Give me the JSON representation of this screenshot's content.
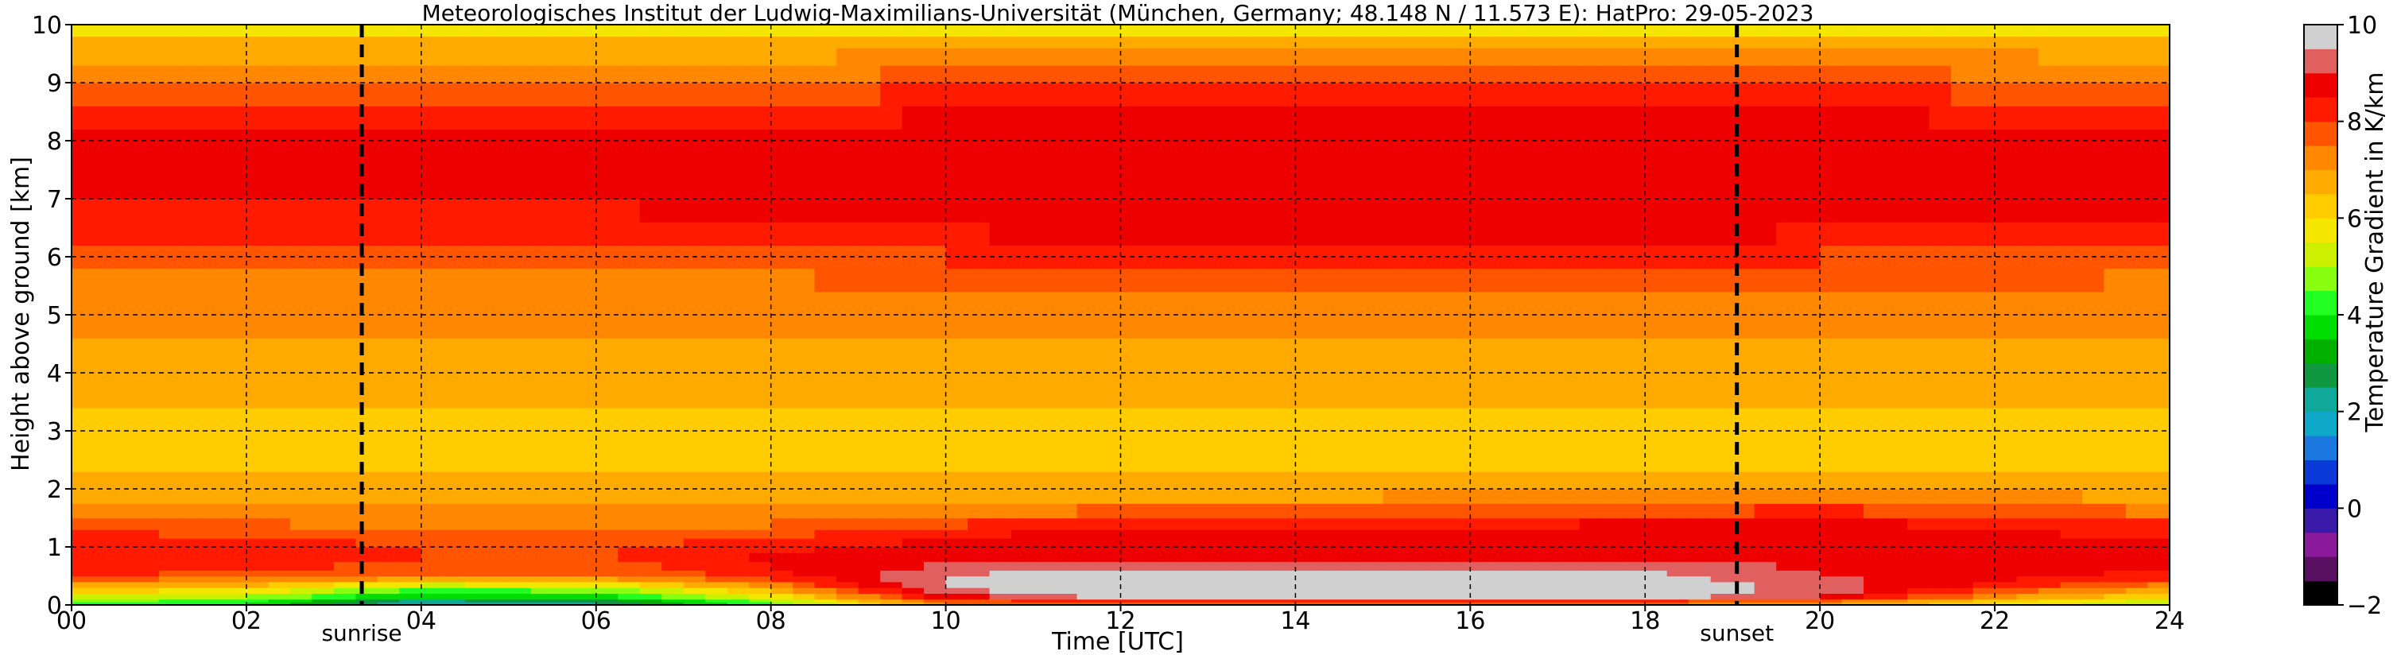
{
  "chart_data": {
    "type": "heatmap",
    "title": "Meteorologisches Institut der Ludwig-Maximilians-Universität (München, Germany; 48.148 N / 11.573 E):    HatPro: 29-05-2023",
    "xlabel": "Time [UTC]",
    "ylabel": "Height above ground [km]",
    "xlim": [
      0,
      24
    ],
    "ylim": [
      0,
      10
    ],
    "x_ticks": [
      "00",
      "02",
      "04",
      "06",
      "08",
      "10",
      "12",
      "14",
      "16",
      "18",
      "20",
      "22",
      "24"
    ],
    "y_ticks": [
      "0",
      "1",
      "2",
      "3",
      "4",
      "5",
      "6",
      "7",
      "8",
      "9",
      "10"
    ],
    "grid": true,
    "colorbar": {
      "label": "Temperature Gradient in K/km",
      "range": [
        -2,
        10
      ],
      "ticks": [
        "−2",
        "0",
        "2",
        "4",
        "6",
        "8",
        "10"
      ],
      "colors": [
        "#000000",
        "#5a1060",
        "#8a1a9a",
        "#3a1aa8",
        "#0000cc",
        "#0a3ad8",
        "#1a78e0",
        "#10a8c8",
        "#10a898",
        "#109840",
        "#00b000",
        "#00dd00",
        "#22ff22",
        "#88ff11",
        "#ccf000",
        "#f5e600",
        "#ffcc00",
        "#ffaa00",
        "#ff8800",
        "#ff5500",
        "#ff1a00",
        "#ee0000",
        "#e06060",
        "#d0d0d0"
      ]
    },
    "events": [
      {
        "label": "sunrise",
        "time": 3.32
      },
      {
        "label": "sunset",
        "time": 19.05
      }
    ],
    "profile_levels_km": [
      0.05,
      0.15,
      0.3,
      0.5,
      0.75,
      1.0,
      1.25,
      1.5,
      1.75,
      2.0,
      2.5,
      3.0,
      3.5,
      4.0,
      4.5,
      5.0,
      5.5,
      6.0,
      6.5,
      7.0,
      7.5,
      8.0,
      8.5,
      9.0,
      9.4,
      9.7,
      9.9
    ],
    "profiles": [
      {
        "time": 0,
        "values": [
          4.5,
          5.5,
          6.5,
          8.0,
          8.5,
          8.5,
          8.0,
          7.3,
          6.8,
          6.6,
          6.4,
          6.4,
          6.6,
          6.8,
          7.0,
          7.1,
          7.3,
          7.5,
          8.3,
          8.6,
          8.7,
          8.5,
          8.2,
          7.5,
          7.0,
          6.6,
          5.6
        ]
      },
      {
        "time": 2,
        "values": [
          4.0,
          5.0,
          6.2,
          7.8,
          8.3,
          8.3,
          7.9,
          7.3,
          6.8,
          6.6,
          6.4,
          6.4,
          6.6,
          6.8,
          7.0,
          7.1,
          7.3,
          7.5,
          8.3,
          8.6,
          8.7,
          8.5,
          8.2,
          7.5,
          7.0,
          6.6,
          5.6
        ]
      },
      {
        "time": 4,
        "values": [
          2.0,
          3.5,
          4.8,
          7.5,
          8.0,
          8.0,
          7.6,
          7.2,
          6.8,
          6.6,
          6.4,
          6.4,
          6.6,
          6.8,
          7.0,
          7.1,
          7.3,
          7.5,
          8.3,
          8.6,
          8.7,
          8.5,
          8.2,
          7.5,
          7.0,
          6.6,
          5.6
        ]
      },
      {
        "time": 6,
        "values": [
          2.5,
          3.8,
          5.0,
          7.4,
          7.9,
          7.9,
          7.5,
          7.2,
          6.8,
          6.6,
          6.4,
          6.4,
          6.6,
          6.8,
          7.0,
          7.1,
          7.3,
          7.5,
          8.3,
          8.6,
          8.7,
          8.5,
          8.2,
          7.5,
          7.0,
          6.6,
          5.6
        ]
      },
      {
        "time": 8,
        "values": [
          4.5,
          5.8,
          7.0,
          8.2,
          8.6,
          8.4,
          7.8,
          7.3,
          6.9,
          6.6,
          6.4,
          6.4,
          6.6,
          6.8,
          7.0,
          7.1,
          7.4,
          7.7,
          8.4,
          8.7,
          8.8,
          8.6,
          8.3,
          7.6,
          7.0,
          6.6,
          5.6
        ]
      },
      {
        "time": 10,
        "values": [
          7.5,
          8.8,
          9.6,
          9.6,
          8.9,
          8.7,
          8.4,
          7.7,
          7.0,
          6.6,
          6.4,
          6.4,
          6.6,
          6.8,
          7.0,
          7.2,
          7.5,
          8.0,
          8.6,
          8.8,
          8.9,
          8.8,
          8.5,
          7.8,
          7.2,
          6.6,
          5.6
        ]
      },
      {
        "time": 12,
        "values": [
          7.8,
          9.8,
          9.9,
          9.8,
          9.0,
          8.8,
          8.6,
          8.0,
          7.1,
          6.7,
          6.4,
          6.4,
          6.6,
          6.8,
          7.0,
          7.2,
          7.6,
          8.1,
          8.7,
          8.8,
          8.9,
          8.9,
          8.6,
          7.9,
          7.3,
          6.6,
          5.6
        ]
      },
      {
        "time": 14,
        "values": [
          7.8,
          9.8,
          9.9,
          9.8,
          9.0,
          8.8,
          8.7,
          8.2,
          7.2,
          6.7,
          6.4,
          6.4,
          6.6,
          6.8,
          7.0,
          7.2,
          7.6,
          8.1,
          8.7,
          8.8,
          8.9,
          8.9,
          8.6,
          7.9,
          7.3,
          6.6,
          5.6
        ]
      },
      {
        "time": 16,
        "values": [
          7.8,
          9.8,
          9.9,
          9.8,
          9.0,
          8.8,
          8.7,
          8.3,
          7.3,
          6.8,
          6.4,
          6.4,
          6.6,
          6.8,
          7.0,
          7.2,
          7.6,
          8.1,
          8.7,
          8.8,
          8.9,
          8.9,
          8.6,
          7.9,
          7.3,
          6.6,
          5.6
        ]
      },
      {
        "time": 18,
        "values": [
          7.6,
          9.8,
          9.9,
          9.7,
          9.0,
          8.8,
          8.7,
          8.4,
          7.4,
          6.8,
          6.4,
          6.4,
          6.6,
          6.8,
          7.0,
          7.2,
          7.6,
          8.1,
          8.7,
          8.8,
          8.9,
          8.9,
          8.6,
          7.9,
          7.3,
          6.6,
          5.6
        ]
      },
      {
        "time": 20,
        "values": [
          7.2,
          9.0,
          9.4,
          9.0,
          8.9,
          8.8,
          8.7,
          8.5,
          7.6,
          6.9,
          6.4,
          6.4,
          6.6,
          6.8,
          7.0,
          7.2,
          7.6,
          8.0,
          8.6,
          8.8,
          8.9,
          8.8,
          8.5,
          7.8,
          7.2,
          6.6,
          5.6
        ]
      },
      {
        "time": 22,
        "values": [
          6.0,
          7.2,
          8.2,
          8.7,
          8.8,
          8.7,
          8.6,
          8.3,
          7.4,
          6.9,
          6.4,
          6.4,
          6.6,
          6.8,
          7.0,
          7.2,
          7.5,
          7.9,
          8.5,
          8.7,
          8.8,
          8.7,
          8.4,
          7.7,
          7.1,
          6.6,
          5.6
        ]
      },
      {
        "time": 24,
        "values": [
          5.0,
          6.0,
          7.0,
          8.3,
          8.6,
          8.6,
          8.3,
          7.8,
          7.0,
          6.7,
          6.4,
          6.4,
          6.6,
          6.8,
          7.0,
          7.1,
          7.4,
          7.7,
          8.4,
          8.6,
          8.7,
          8.6,
          8.3,
          7.6,
          7.0,
          6.6,
          5.6
        ]
      }
    ]
  }
}
